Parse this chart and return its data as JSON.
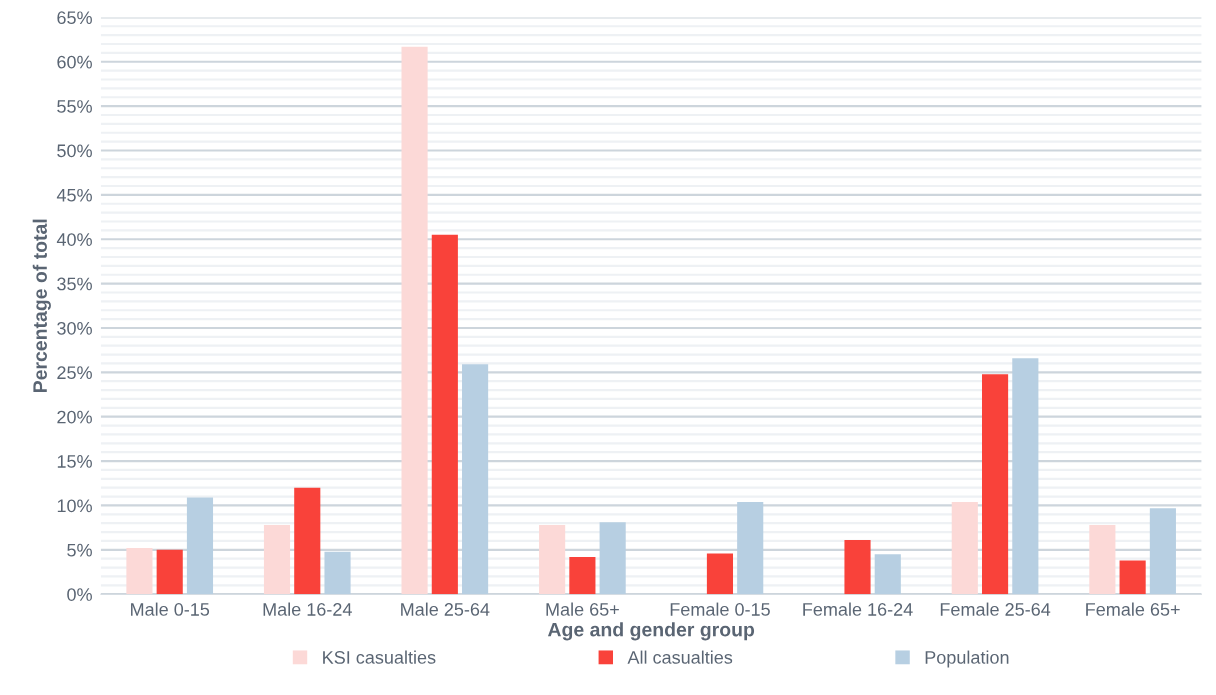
{
  "chart_data": {
    "type": "bar",
    "xlabel": "Age and gender group",
    "ylabel": "Percentage of total",
    "categories": [
      "Male 0-15",
      "Male 16-24",
      "Male 25-64",
      "Male 65+",
      "Female 0-15",
      "Female 16-24",
      "Female 25-64",
      "Female 65+"
    ],
    "series": [
      {
        "name": "KSI casualties",
        "color": "#fcd9d7",
        "values": [
          5.2,
          7.8,
          61.7,
          7.8,
          0,
          0,
          10.4,
          7.8
        ]
      },
      {
        "name": "All casualties",
        "color": "#f9423a",
        "values": [
          5.0,
          12.0,
          40.5,
          4.2,
          4.6,
          6.1,
          24.8,
          3.8
        ]
      },
      {
        "name": "Population",
        "color": "#b7cfe2",
        "values": [
          10.9,
          4.8,
          25.9,
          8.1,
          10.4,
          4.5,
          26.6,
          9.7
        ]
      }
    ],
    "ylim": [
      0,
      65
    ],
    "yticks": [
      {
        "value": 0,
        "label": "0%"
      },
      {
        "value": 1,
        "label": null
      },
      {
        "value": 2,
        "label": null
      },
      {
        "value": 3,
        "label": null
      },
      {
        "value": 4,
        "label": null
      },
      {
        "value": 5,
        "label": "5%"
      },
      {
        "value": 6,
        "label": null
      },
      {
        "value": 7,
        "label": null
      },
      {
        "value": 8,
        "label": null
      },
      {
        "value": 9,
        "label": null
      },
      {
        "value": 10,
        "label": "10%"
      },
      {
        "value": 11,
        "label": null
      },
      {
        "value": 12,
        "label": null
      },
      {
        "value": 13,
        "label": null
      },
      {
        "value": 14,
        "label": null
      },
      {
        "value": 15,
        "label": "15%"
      },
      {
        "value": 16,
        "label": null
      },
      {
        "value": 17,
        "label": null
      },
      {
        "value": 18,
        "label": null
      },
      {
        "value": 19,
        "label": null
      },
      {
        "value": 20,
        "label": "20%"
      },
      {
        "value": 21,
        "label": null
      },
      {
        "value": 22,
        "label": null
      },
      {
        "value": 23,
        "label": null
      },
      {
        "value": 24,
        "label": null
      },
      {
        "value": 25,
        "label": "25%"
      },
      {
        "value": 26,
        "label": null
      },
      {
        "value": 27,
        "label": null
      },
      {
        "value": 28,
        "label": null
      },
      {
        "value": 29,
        "label": null
      },
      {
        "value": 30,
        "label": "30%"
      },
      {
        "value": 31,
        "label": null
      },
      {
        "value": 32,
        "label": null
      },
      {
        "value": 33,
        "label": null
      },
      {
        "value": 34,
        "label": null
      },
      {
        "value": 35,
        "label": "35%"
      },
      {
        "value": 36,
        "label": null
      },
      {
        "value": 37,
        "label": null
      },
      {
        "value": 38,
        "label": null
      },
      {
        "value": 39,
        "label": null
      },
      {
        "value": 40,
        "label": "40%"
      },
      {
        "value": 41,
        "label": null
      },
      {
        "value": 42,
        "label": null
      },
      {
        "value": 43,
        "label": null
      },
      {
        "value": 44,
        "label": null
      },
      {
        "value": 45,
        "label": "45%"
      },
      {
        "value": 46,
        "label": null
      },
      {
        "value": 47,
        "label": null
      },
      {
        "value": 48,
        "label": null
      },
      {
        "value": 49,
        "label": null
      },
      {
        "value": 50,
        "label": "50%"
      },
      {
        "value": 51,
        "label": null
      },
      {
        "value": 52,
        "label": null
      },
      {
        "value": 53,
        "label": null
      },
      {
        "value": 54,
        "label": null
      },
      {
        "value": 55,
        "label": "55%"
      },
      {
        "value": 56,
        "label": null
      },
      {
        "value": 57,
        "label": null
      },
      {
        "value": 58,
        "label": null
      },
      {
        "value": 59,
        "label": null
      },
      {
        "value": 60,
        "label": "60%"
      },
      {
        "value": 61,
        "label": null
      },
      {
        "value": 62,
        "label": null
      },
      {
        "value": 63,
        "label": null
      },
      {
        "value": 64,
        "label": null
      },
      {
        "value": 65,
        "label": "65%"
      }
    ],
    "grid": "y",
    "legend": "bottom"
  }
}
